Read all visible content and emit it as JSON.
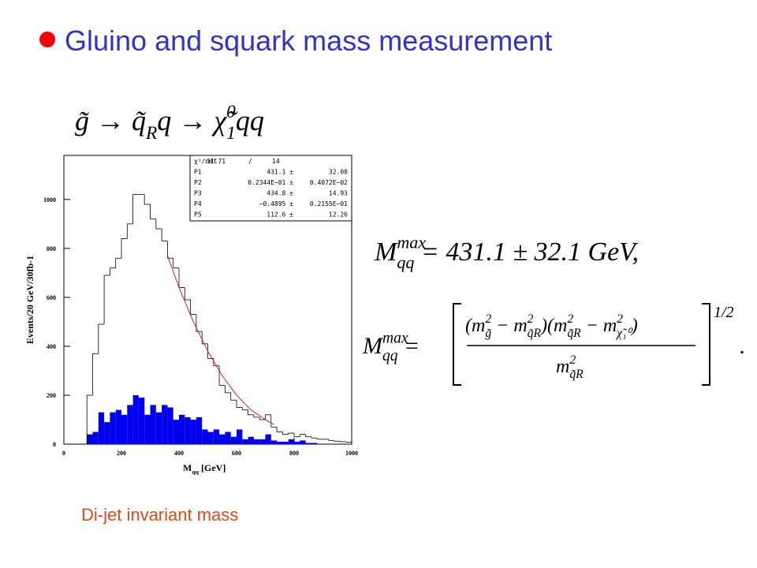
{
  "title": "Gluino and squark mass measurement",
  "decay": [
    {
      "t": "g̃ → q̃"
    },
    {
      "sub": "R"
    },
    {
      "t": "q → χ̃"
    },
    {
      "sup": "0"
    },
    {
      "sub": "1"
    },
    {
      "t": "qq"
    }
  ],
  "equation_1": [
    {
      "t": "M"
    },
    {
      "sup": "max"
    },
    {
      "sub": "qq"
    },
    {
      "t": " = 431.1 ± 32.1  GeV,"
    }
  ],
  "equation_2": {
    "lhs": [
      {
        "t": "M"
      },
      {
        "sup": "max"
      },
      {
        "sub": "qq"
      },
      {
        "t": " ="
      }
    ],
    "numerator": [
      {
        "t": "(m"
      },
      {
        "sup": "2"
      },
      {
        "sub": "g̃"
      },
      {
        "t": " − m"
      },
      {
        "sup": "2"
      },
      {
        "sub": "q̃R"
      },
      {
        "t": ")(m"
      },
      {
        "sup": "2"
      },
      {
        "sub": "q̃R"
      },
      {
        "t": " − m"
      },
      {
        "sup": "2"
      },
      {
        "sub": "χ̃₁⁰"
      },
      {
        "t": ")"
      }
    ],
    "denominator": [
      {
        "t": "m"
      },
      {
        "sup": "2"
      },
      {
        "sub": "q̃R"
      }
    ],
    "exponent": "1/2",
    "end": "."
  },
  "caption": "Di-jet invariant mass",
  "chart_data": {
    "type": "histogram",
    "y_label": "Events/20 GeV/30fb-1",
    "x_label": [
      {
        "t": "M"
      },
      {
        "sub": "qq"
      },
      {
        "t": "  [GeV]"
      }
    ],
    "bins": [
      0,
      20,
      40,
      60,
      80,
      100,
      120,
      140,
      160,
      180,
      200,
      220,
      240,
      260,
      280,
      300,
      320,
      340,
      360,
      380,
      400,
      420,
      440,
      460,
      480,
      500,
      520,
      540,
      560,
      580,
      600,
      620,
      640,
      660,
      680,
      700,
      720,
      740,
      760,
      780,
      800,
      820,
      840,
      860,
      880,
      900,
      920,
      940,
      960,
      980,
      1000
    ],
    "series": [
      {
        "color": "#0000ee",
        "style": "filled",
        "values": [
          0,
          0,
          0,
          0,
          40,
          50,
          130,
          90,
          130,
          140,
          120,
          160,
          200,
          190,
          120,
          160,
          130,
          160,
          150,
          100,
          120,
          110,
          100,
          110,
          60,
          50,
          60,
          40,
          50,
          30,
          60,
          20,
          30,
          20,
          20,
          40,
          15,
          10,
          10,
          20,
          10,
          15,
          5,
          5,
          0,
          0,
          0,
          0,
          0,
          0
        ]
      },
      {
        "color": "#000000",
        "style": "step",
        "values": [
          0,
          0,
          0,
          0,
          200,
          370,
          490,
          690,
          720,
          760,
          840,
          900,
          1020,
          1020,
          980,
          920,
          880,
          830,
          760,
          720,
          640,
          590,
          530,
          460,
          410,
          350,
          320,
          240,
          210,
          180,
          150,
          140,
          120,
          110,
          100,
          120,
          70,
          50,
          40,
          45,
          30,
          40,
          30,
          25,
          20,
          20,
          15,
          12,
          10,
          8
        ]
      }
    ],
    "fit": {
      "color": "#dd2222",
      "x": [
        360,
        400,
        450,
        500,
        550,
        600,
        650,
        700,
        730
      ],
      "values": [
        770,
        640,
        500,
        380,
        280,
        200,
        140,
        100,
        80
      ]
    },
    "xlim": [
      0,
      1000
    ],
    "xticks": [
      0,
      200,
      400,
      600,
      800,
      1000
    ],
    "ylim": [
      0,
      1180
    ],
    "yticks": [
      0,
      200,
      400,
      600,
      800,
      1000
    ],
    "stats": {
      "header": [
        "χ²/ndf",
        "31.71",
        "/",
        "14"
      ],
      "rows": [
        [
          "P1",
          "431.1 ±",
          "32.08"
        ],
        [
          "P2",
          "0.2344E−01 ±",
          "0.4072E−02"
        ],
        [
          "P3",
          "434.8 ±",
          "14.93"
        ],
        [
          "P4",
          "−0.4895 ±",
          "0.2155E−01"
        ],
        [
          "P5",
          "112.6 ±",
          "12.26"
        ]
      ]
    }
  }
}
